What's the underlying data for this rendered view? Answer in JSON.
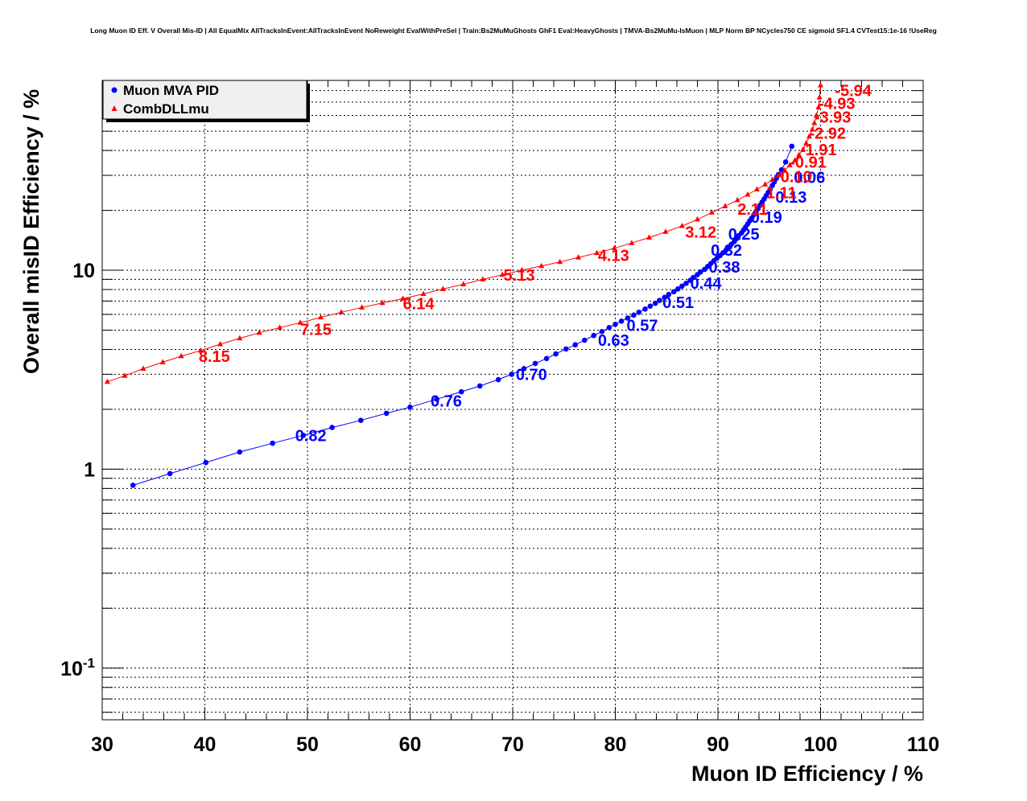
{
  "chart_data": {
    "type": "line",
    "title": "Long Muon ID Eff. V Overall Mis-ID | All EqualMix AllTracksInEvent:AllTracksInEvent NoReweight EvalWithPreSel | Train:Bs2MuMuGhosts GhF1 Eval:HeavyGhosts | TMVA-Bs2MuMu-IsMuon | MLP Norm BP NCycles750 CE sigmoid SF1.4 CVTest15:1e-16 !UseReg",
    "xlabel": "Muon ID Efficiency / %",
    "ylabel": "Overall misID Efficiency / %",
    "xlim": [
      30,
      110
    ],
    "ylim": [
      0.055,
      90
    ],
    "yscale": "log",
    "grid": true,
    "legend_position": "top-left",
    "x_ticks": [
      "30",
      "40",
      "50",
      "60",
      "70",
      "80",
      "90",
      "100",
      "110"
    ],
    "y_ticks": [
      {
        "value": 0.1,
        "base": "10",
        "exp": "-1"
      },
      {
        "value": 1,
        "base": "1",
        "exp": ""
      },
      {
        "value": 10,
        "base": "10",
        "exp": ""
      }
    ],
    "series": [
      {
        "name": "Muon MVA PID",
        "color": "#0000ff",
        "marker": "circle",
        "x": [
          33.0,
          36.6,
          40.1,
          43.4,
          46.6,
          49.6,
          52.4,
          55.2,
          57.7,
          60.0,
          62.6,
          65.0,
          66.8,
          68.6,
          69.9,
          71.1,
          72.2,
          73.3,
          74.2,
          75.2,
          76.1,
          77.0,
          77.9,
          78.7,
          79.4,
          80.0,
          80.6,
          81.2,
          81.8,
          82.3,
          82.9,
          83.4,
          83.9,
          84.3,
          84.8,
          85.2,
          85.7,
          86.1,
          86.5,
          86.9,
          87.3,
          87.6,
          88.0,
          88.3,
          88.7,
          89.0,
          89.3,
          89.6,
          89.9,
          90.2,
          90.5,
          90.8,
          91.0,
          91.3,
          91.6,
          91.8,
          92.0,
          92.3,
          92.5,
          92.7,
          92.9,
          93.1,
          93.3,
          93.5,
          93.7,
          93.9,
          94.1,
          94.3,
          94.5,
          94.7,
          94.9,
          95.1,
          95.3,
          95.5,
          95.7,
          95.9,
          96.2,
          96.6,
          97.2
        ],
        "y": [
          0.83,
          0.95,
          1.08,
          1.22,
          1.35,
          1.48,
          1.62,
          1.76,
          1.91,
          2.05,
          2.25,
          2.45,
          2.62,
          2.82,
          3.0,
          3.2,
          3.4,
          3.6,
          3.8,
          4.02,
          4.22,
          4.45,
          4.7,
          4.92,
          5.15,
          5.35,
          5.55,
          5.75,
          5.95,
          6.15,
          6.38,
          6.6,
          6.82,
          7.05,
          7.3,
          7.55,
          7.8,
          8.05,
          8.32,
          8.6,
          8.9,
          9.2,
          9.5,
          9.8,
          10.1,
          10.45,
          10.8,
          11.15,
          11.5,
          11.85,
          12.25,
          12.65,
          13.05,
          13.5,
          13.95,
          14.4,
          14.9,
          15.4,
          15.95,
          16.5,
          17.1,
          17.7,
          18.3,
          19.0,
          19.7,
          20.4,
          21.2,
          22.0,
          22.8,
          23.7,
          24.6,
          25.6,
          26.7,
          27.8,
          29.0,
          30.3,
          32.0,
          35.0,
          42.0
        ],
        "labels": [
          {
            "text": "0.82",
            "x": 48.8,
            "y": 1.48
          },
          {
            "text": "0.76",
            "x": 62.0,
            "y": 2.2
          },
          {
            "text": "0.70",
            "x": 70.3,
            "y": 3.0
          },
          {
            "text": "0.63",
            "x": 78.3,
            "y": 4.45
          },
          {
            "text": "0.57",
            "x": 81.1,
            "y": 5.3
          },
          {
            "text": "0.51",
            "x": 84.6,
            "y": 6.9
          },
          {
            "text": "0.44",
            "x": 87.3,
            "y": 8.6
          },
          {
            "text": "0.38",
            "x": 89.1,
            "y": 10.4
          },
          {
            "text": "0.32",
            "x": 89.3,
            "y": 12.6
          },
          {
            "text": "0.25",
            "x": 91.0,
            "y": 15.2
          },
          {
            "text": "0.19",
            "x": 93.2,
            "y": 18.5
          },
          {
            "text": "0.13",
            "x": 95.6,
            "y": 23.3
          },
          {
            "text": "0.06",
            "x": 97.4,
            "y": 29.3
          }
        ]
      },
      {
        "name": "CombDLLmu",
        "color": "#ff0000",
        "marker": "triangle",
        "x": [
          30.5,
          32.2,
          34.0,
          35.9,
          37.7,
          39.6,
          41.5,
          43.4,
          45.3,
          47.3,
          49.3,
          51.3,
          53.3,
          55.3,
          57.3,
          59.3,
          61.3,
          63.2,
          65.2,
          67.1,
          69.0,
          70.9,
          72.8,
          74.6,
          76.4,
          78.2,
          79.9,
          81.6,
          83.3,
          84.9,
          86.5,
          88.0,
          89.4,
          90.7,
          91.9,
          92.9,
          93.8,
          94.6,
          95.3,
          95.9,
          96.5,
          97.0,
          97.5,
          97.9,
          98.3,
          98.6,
          98.9,
          99.2,
          99.4,
          99.6,
          99.8,
          99.9,
          100.0
        ],
        "y": [
          2.75,
          2.95,
          3.2,
          3.45,
          3.7,
          3.95,
          4.25,
          4.55,
          4.85,
          5.15,
          5.45,
          5.8,
          6.15,
          6.5,
          6.85,
          7.2,
          7.6,
          8.05,
          8.5,
          9.0,
          9.5,
          10.0,
          10.5,
          11.0,
          11.6,
          12.2,
          12.9,
          13.7,
          14.6,
          15.6,
          16.7,
          18.0,
          19.5,
          21.0,
          22.5,
          24.0,
          25.5,
          27.0,
          28.5,
          30.0,
          31.8,
          33.7,
          35.7,
          38.0,
          40.5,
          43.5,
          47.0,
          51.0,
          55.0,
          60.0,
          66.0,
          74.0,
          85.0
        ],
        "labels": [
          {
            "text": "8.15",
            "x": 39.4,
            "y": 3.7
          },
          {
            "text": "7.15",
            "x": 49.3,
            "y": 5.05
          },
          {
            "text": "6.14",
            "x": 59.3,
            "y": 6.8
          },
          {
            "text": "5.13",
            "x": 69.1,
            "y": 9.45
          },
          {
            "text": "4.13",
            "x": 78.3,
            "y": 11.9
          },
          {
            "text": "3.12",
            "x": 86.8,
            "y": 15.6
          },
          {
            "text": "2.11",
            "x": 91.9,
            "y": 20.3
          },
          {
            "text": "1.11",
            "x": 94.7,
            "y": 24.6
          },
          {
            "text": "0.10",
            "x": 96.1,
            "y": 29.6
          },
          {
            "text": "-0.91",
            "x": 97.0,
            "y": 35.0
          },
          {
            "text": "-1.91",
            "x": 98.0,
            "y": 40.5
          },
          {
            "text": "-2.92",
            "x": 98.9,
            "y": 49.0
          },
          {
            "text": "-3.93",
            "x": 99.4,
            "y": 59.0
          },
          {
            "text": "-4.93",
            "x": 99.8,
            "y": 69.0
          },
          {
            "text": "-5.94",
            "x": 101.4,
            "y": 80.0
          }
        ]
      }
    ]
  }
}
